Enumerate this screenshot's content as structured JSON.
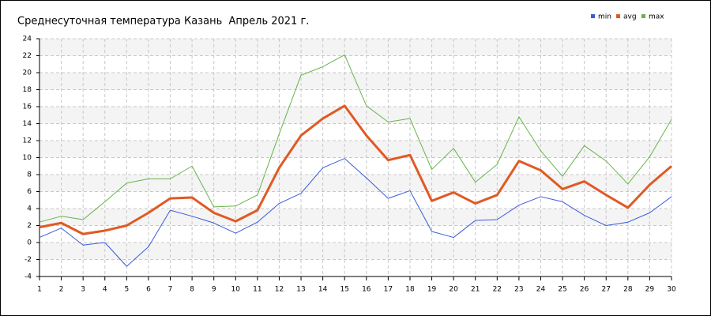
{
  "chart_data": {
    "type": "line",
    "title": "Среднесуточная температура Казань  Апрель 2021 г.",
    "x": [
      1,
      2,
      3,
      4,
      5,
      6,
      7,
      8,
      9,
      10,
      11,
      12,
      13,
      14,
      15,
      16,
      17,
      18,
      19,
      20,
      21,
      22,
      23,
      24,
      25,
      26,
      27,
      28,
      29,
      30
    ],
    "xlim": [
      1,
      30
    ],
    "xticks": [
      1,
      2,
      3,
      4,
      5,
      6,
      7,
      8,
      9,
      10,
      11,
      12,
      13,
      14,
      15,
      16,
      17,
      18,
      19,
      20,
      21,
      22,
      23,
      24,
      25,
      26,
      27,
      28,
      29,
      30
    ],
    "ylim": [
      -4,
      24
    ],
    "yticks": [
      -4,
      -2,
      0,
      2,
      4,
      6,
      8,
      10,
      12,
      14,
      16,
      18,
      20,
      22,
      24
    ],
    "grid": true,
    "legend": "top-right",
    "series": [
      {
        "name": "min",
        "color": "#3a5bd9",
        "width": 1,
        "values": [
          0.6,
          1.7,
          -0.3,
          0.0,
          -2.8,
          -0.5,
          3.8,
          3.1,
          2.3,
          1.1,
          2.4,
          4.6,
          5.8,
          8.8,
          9.9,
          7.6,
          5.2,
          6.1,
          1.3,
          0.6,
          2.6,
          2.7,
          4.4,
          5.4,
          4.8,
          3.2,
          2.0,
          2.4,
          3.5,
          5.4
        ]
      },
      {
        "name": "avg",
        "color": "#e05a24",
        "width": 3,
        "values": [
          1.8,
          2.3,
          1.0,
          1.4,
          2.0,
          3.5,
          5.2,
          5.3,
          3.5,
          2.5,
          3.8,
          8.8,
          12.6,
          14.6,
          16.1,
          12.6,
          9.7,
          10.3,
          4.9,
          5.9,
          4.6,
          5.6,
          9.6,
          8.5,
          6.3,
          7.2,
          5.6,
          4.1,
          6.8,
          9.0
        ]
      },
      {
        "name": "max",
        "color": "#67b34a",
        "width": 1,
        "values": [
          2.4,
          3.1,
          2.7,
          4.8,
          7.0,
          7.5,
          7.5,
          9.0,
          4.2,
          4.3,
          5.6,
          12.8,
          19.7,
          20.7,
          22.1,
          16.1,
          14.2,
          14.6,
          8.6,
          11.1,
          7.1,
          9.2,
          14.8,
          10.8,
          7.8,
          11.4,
          9.6,
          6.9,
          10.1,
          14.5
        ]
      }
    ]
  }
}
